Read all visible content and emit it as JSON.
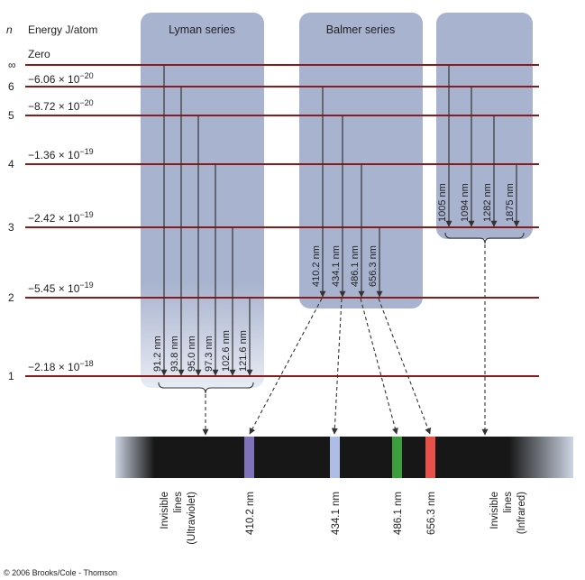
{
  "header": {
    "n_label": "n",
    "energy_label": "Energy J/atom"
  },
  "levels": [
    {
      "n": "∞",
      "energy": "Zero"
    },
    {
      "n": "6",
      "energy": "−6.06 × 10",
      "exp": "−20"
    },
    {
      "n": "5",
      "energy": "−8.72 × 10",
      "exp": "−20"
    },
    {
      "n": "4",
      "energy": "−1.36 × 10",
      "exp": "−19"
    },
    {
      "n": "3",
      "energy": "−2.42 × 10",
      "exp": "−19"
    },
    {
      "n": "2",
      "energy": "−5.45 × 10",
      "exp": "−19"
    },
    {
      "n": "1",
      "energy": "−2.18 × 10",
      "exp": "−18"
    }
  ],
  "series": {
    "lyman": {
      "title": "Lyman series",
      "wavelengths": [
        "91.2 nm",
        "93.8 nm",
        "95.0 nm",
        "97.3 nm",
        "102.6 nm",
        "121.6 nm"
      ]
    },
    "balmer": {
      "title": "Balmer series",
      "wavelengths": [
        "410.2 nm",
        "434.1 nm",
        "486.1 nm",
        "656.3 nm"
      ]
    },
    "paschen": {
      "title": "",
      "wavelengths": [
        "1005 nm",
        "1094 nm",
        "1282 nm",
        "1875 nm"
      ]
    }
  },
  "spectrum": {
    "left_label": [
      "Invisible",
      "lines",
      "(Ultraviolet)"
    ],
    "right_label": [
      "Invisible",
      "lines",
      "(Infrared)"
    ],
    "lines": [
      {
        "label": "410.2 nm",
        "color": "#7f72b8"
      },
      {
        "label": "434.1 nm",
        "color": "#aebde6"
      },
      {
        "label": "486.1 nm",
        "color": "#3d9e3d"
      },
      {
        "label": "656.3 nm",
        "color": "#e8504a"
      }
    ]
  },
  "colors": {
    "level_line": "#8b1a1a",
    "panel": "#a8b3cf",
    "arrow": "#333333"
  },
  "copyright": "© 2006 Brooks/Cole - Thomson"
}
